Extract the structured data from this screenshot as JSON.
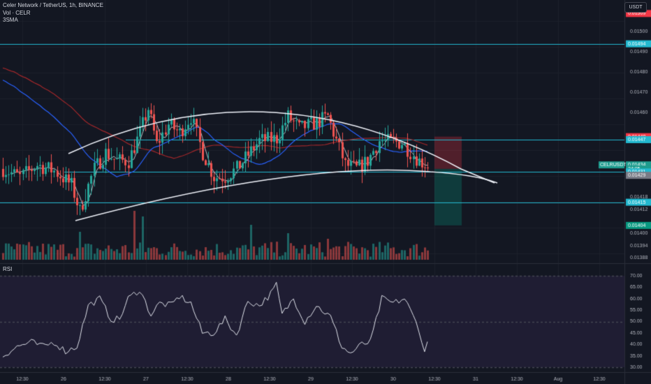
{
  "header": {
    "title": "Celer Network / TetherUS, 1h, BINANCE",
    "vol_label": "Vol · CELR",
    "ma_label": "3SMA",
    "currency": "USDT",
    "rsi_label": "RSI"
  },
  "colors": {
    "background": "#131722",
    "up": "#26a69a",
    "down": "#ef5350",
    "hline": "#22b8cf",
    "ma_blue": "#2962ff",
    "ma_red": "#a0272a",
    "rsi_line": "#e0e3eb",
    "rsi_band": "#1f1d33"
  },
  "chart_data": {
    "type": "candlestick",
    "price_axis": {
      "ticks": [
        "0.01500",
        "0.01490",
        "0.01480",
        "0.01470",
        "0.01460",
        "0.01418",
        "0.01412",
        "0.01400",
        "0.01394",
        "0.01388"
      ],
      "range": [
        0.01387,
        0.01515
      ]
    },
    "price_tags": [
      {
        "label": "0.01509",
        "value": 0.01509,
        "color": "#f23645"
      },
      {
        "label": "0.01494",
        "value": 0.01494,
        "color": "#22b8cf"
      },
      {
        "label": "0.01448",
        "value": 0.01448,
        "color": "#f23645"
      },
      {
        "label": "0.01447",
        "value": 0.014465,
        "color": "#22b8cf"
      },
      {
        "label": "CELRUSDT",
        "value": 0.01434,
        "color": "#1e9c8f"
      },
      {
        "label": "0.01434",
        "value": 0.01434,
        "color": "#1e9c8f"
      },
      {
        "label": "24:05",
        "value": 0.01432,
        "color": "#1e9c8f"
      },
      {
        "label": "0.01431",
        "value": 0.014305,
        "color": "#22b8cf"
      },
      {
        "label": "0.01429",
        "value": 0.014288,
        "color": "#787b86"
      },
      {
        "label": "0.01415",
        "value": 0.014155,
        "color": "#22b8cf"
      },
      {
        "label": "0.01404",
        "value": 0.01404,
        "color": "#089981"
      }
    ],
    "horizontal_lines": [
      0.01494,
      0.014465,
      0.014305,
      0.014155
    ],
    "x_ticks": [
      "12:30",
      "26",
      "12:30",
      "27",
      "12:30",
      "28",
      "12:30",
      "29",
      "12:30",
      "30",
      "12:30",
      "31",
      "12:30",
      "Aug",
      "12:30"
    ],
    "bars": 150,
    "close_path": [
      [
        0,
        0.01432
      ],
      [
        6,
        0.01428
      ],
      [
        12,
        0.01434
      ],
      [
        18,
        0.01431
      ],
      [
        24,
        0.01424
      ],
      [
        27,
        0.01411
      ],
      [
        32,
        0.01432
      ],
      [
        36,
        0.0144
      ],
      [
        40,
        0.01436
      ],
      [
        44,
        0.01436
      ],
      [
        48,
        0.0145
      ],
      [
        51,
        0.01462
      ],
      [
        54,
        0.01444
      ],
      [
        58,
        0.01454
      ],
      [
        62,
        0.0145
      ],
      [
        66,
        0.01458
      ],
      [
        70,
        0.0144
      ],
      [
        74,
        0.01428
      ],
      [
        78,
        0.01428
      ],
      [
        82,
        0.01432
      ],
      [
        86,
        0.01439
      ],
      [
        90,
        0.01446
      ],
      [
        96,
        0.01447
      ],
      [
        100,
        0.01458
      ],
      [
        104,
        0.01452
      ],
      [
        110,
        0.01455
      ],
      [
        114,
        0.01458
      ],
      [
        120,
        0.01434
      ],
      [
        124,
        0.01432
      ],
      [
        128,
        0.01436
      ],
      [
        132,
        0.01446
      ],
      [
        140,
        0.01445
      ],
      [
        146,
        0.01436
      ],
      [
        149,
        0.01434
      ]
    ],
    "projection_box": {
      "entry": 0.01432,
      "top": 0.01448,
      "bottom": 0.01404
    },
    "rsi": {
      "ticks": [
        70,
        65,
        60,
        55,
        50,
        45,
        40,
        35,
        30
      ],
      "range": [
        30,
        70
      ],
      "path": [
        [
          0,
          35
        ],
        [
          5,
          39
        ],
        [
          10,
          41
        ],
        [
          14,
          39
        ],
        [
          18,
          41
        ],
        [
          22,
          37
        ],
        [
          26,
          39
        ],
        [
          30,
          57
        ],
        [
          34,
          60
        ],
        [
          38,
          51
        ],
        [
          41,
          51
        ],
        [
          44,
          60
        ],
        [
          48,
          64
        ],
        [
          52,
          53
        ],
        [
          55,
          58
        ],
        [
          59,
          57
        ],
        [
          62,
          61
        ],
        [
          66,
          58
        ],
        [
          70,
          45
        ],
        [
          74,
          45
        ],
        [
          78,
          51
        ],
        [
          82,
          44
        ],
        [
          86,
          59
        ],
        [
          90,
          57
        ],
        [
          94,
          62
        ],
        [
          96,
          66
        ],
        [
          98,
          53
        ],
        [
          102,
          60
        ],
        [
          106,
          50
        ],
        [
          110,
          57
        ],
        [
          115,
          52
        ],
        [
          119,
          39
        ],
        [
          122,
          36
        ],
        [
          126,
          40
        ],
        [
          129,
          41
        ],
        [
          133,
          60
        ],
        [
          137,
          58
        ],
        [
          141,
          60
        ],
        [
          146,
          47
        ],
        [
          148,
          36
        ],
        [
          149,
          41
        ]
      ]
    }
  }
}
